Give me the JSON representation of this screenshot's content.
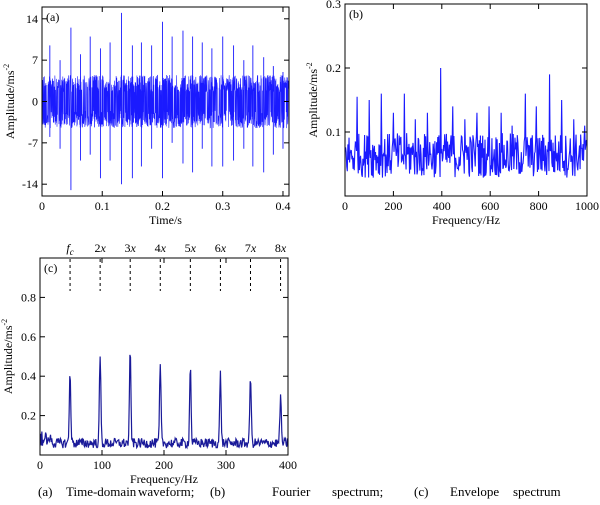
{
  "chart_data": [
    {
      "type": "line",
      "panel_label": "(a)",
      "xlabel": "Time/s",
      "ylabel": "Amplitude/ms",
      "ylabel_sup": "-2",
      "xlim": [
        0,
        0.41
      ],
      "ylim": [
        -16,
        16
      ],
      "xticks": [
        0,
        0.1,
        0.2,
        0.3,
        0.4
      ],
      "xtick_labels": [
        "0",
        "0.1",
        "0.2",
        "0.3",
        "0.4"
      ],
      "yticks": [
        14,
        7,
        0,
        -7,
        -14
      ],
      "ytick_labels": [
        "14",
        "7",
        "0",
        "-7",
        "-14"
      ],
      "grid": false,
      "color": "#1a1aff",
      "band_amplitude": 4.5,
      "impulses": [
        {
          "x": 0.013,
          "hi": 9.5,
          "lo": -6
        },
        {
          "x": 0.03,
          "hi": 7,
          "lo": -8
        },
        {
          "x": 0.048,
          "hi": 12.5,
          "lo": -15
        },
        {
          "x": 0.064,
          "hi": 8,
          "lo": -10
        },
        {
          "x": 0.08,
          "hi": 11,
          "lo": -9
        },
        {
          "x": 0.097,
          "hi": 9,
          "lo": -13
        },
        {
          "x": 0.113,
          "hi": 10,
          "lo": -10
        },
        {
          "x": 0.132,
          "hi": 15,
          "lo": -14
        },
        {
          "x": 0.15,
          "hi": 9.5,
          "lo": -13
        },
        {
          "x": 0.165,
          "hi": 10,
          "lo": -11
        },
        {
          "x": 0.182,
          "hi": 9.5,
          "lo": -8
        },
        {
          "x": 0.2,
          "hi": 13.5,
          "lo": -13
        },
        {
          "x": 0.216,
          "hi": 11,
          "lo": -7
        },
        {
          "x": 0.234,
          "hi": 12,
          "lo": -10.5
        },
        {
          "x": 0.25,
          "hi": 11,
          "lo": -12
        },
        {
          "x": 0.266,
          "hi": 10,
          "lo": -8
        },
        {
          "x": 0.282,
          "hi": 9,
          "lo": -11
        },
        {
          "x": 0.3,
          "hi": 11,
          "lo": -11
        },
        {
          "x": 0.318,
          "hi": 9.5,
          "lo": -10
        },
        {
          "x": 0.335,
          "hi": 7,
          "lo": -8
        },
        {
          "x": 0.35,
          "hi": 9.5,
          "lo": -11
        },
        {
          "x": 0.368,
          "hi": 7.5,
          "lo": -12
        },
        {
          "x": 0.384,
          "hi": 6,
          "lo": -9
        },
        {
          "x": 0.4,
          "hi": 5,
          "lo": -8
        }
      ]
    },
    {
      "type": "line",
      "panel_label": "(b)",
      "xlabel": "Frequency/Hz",
      "ylabel": "Amplitude/ms",
      "ylabel_sup": "-2",
      "xlim": [
        0,
        1000
      ],
      "ylim": [
        0,
        0.3
      ],
      "xticks": [
        200,
        400,
        600,
        800,
        1000
      ],
      "xtick_labels": [
        "200",
        "400",
        "600",
        "800",
        "1000"
      ],
      "yticks": [
        0.3,
        0.2,
        0.1
      ],
      "ytick_labels": [
        "0.3",
        "0.2",
        "0.1"
      ],
      "grid": false,
      "color": "#1a1aff",
      "baseline": 0.06,
      "peaks": [
        {
          "x": 50,
          "y": 0.155
        },
        {
          "x": 100,
          "y": 0.15
        },
        {
          "x": 150,
          "y": 0.16
        },
        {
          "x": 200,
          "y": 0.13
        },
        {
          "x": 245,
          "y": 0.16
        },
        {
          "x": 290,
          "y": 0.12
        },
        {
          "x": 340,
          "y": 0.13
        },
        {
          "x": 395,
          "y": 0.2
        },
        {
          "x": 445,
          "y": 0.14
        },
        {
          "x": 495,
          "y": 0.12
        },
        {
          "x": 545,
          "y": 0.13
        },
        {
          "x": 595,
          "y": 0.14
        },
        {
          "x": 645,
          "y": 0.13
        },
        {
          "x": 690,
          "y": 0.11
        },
        {
          "x": 745,
          "y": 0.16
        },
        {
          "x": 790,
          "y": 0.14
        },
        {
          "x": 845,
          "y": 0.19
        },
        {
          "x": 895,
          "y": 0.15
        },
        {
          "x": 945,
          "y": 0.12
        },
        {
          "x": 990,
          "y": 0.11
        }
      ]
    },
    {
      "type": "line",
      "panel_label": "(c)",
      "xlabel": "Frequency/Hz",
      "ylabel": "Amplitude/ms",
      "ylabel_sup": "-2",
      "xlim": [
        0,
        400
      ],
      "ylim": [
        0,
        1.0
      ],
      "xticks": [
        100,
        200,
        300,
        400
      ],
      "xtick_labels": [
        "100",
        "200",
        "300",
        "400"
      ],
      "yticks": [
        0.8,
        0.6,
        0.4,
        0.2
      ],
      "ytick_labels": [
        "0.8",
        "0.6",
        "0.4",
        "0.2"
      ],
      "grid": false,
      "color": "#1a1a99",
      "baseline": 0.06,
      "harmonics": [
        {
          "label": "f",
          "sub": "c",
          "x": 48.5,
          "y": 0.43
        },
        {
          "label": "2x",
          "sub": "",
          "x": 97,
          "y": 0.51
        },
        {
          "label": "3x",
          "sub": "",
          "x": 145.5,
          "y": 0.53
        },
        {
          "label": "4x",
          "sub": "",
          "x": 194,
          "y": 0.46
        },
        {
          "label": "5x",
          "sub": "",
          "x": 242.5,
          "y": 0.46
        },
        {
          "label": "6x",
          "sub": "",
          "x": 291,
          "y": 0.41
        },
        {
          "label": "7x",
          "sub": "",
          "x": 339.5,
          "y": 0.41
        },
        {
          "label": "8x",
          "sub": "",
          "x": 388,
          "y": 0.3
        }
      ]
    }
  ],
  "caption": [
    "(a)",
    "Time-domain",
    "waveform;",
    "(b)",
    "Fourier",
    "spectrum;",
    "(c)",
    "Envelope",
    "spectrum"
  ]
}
